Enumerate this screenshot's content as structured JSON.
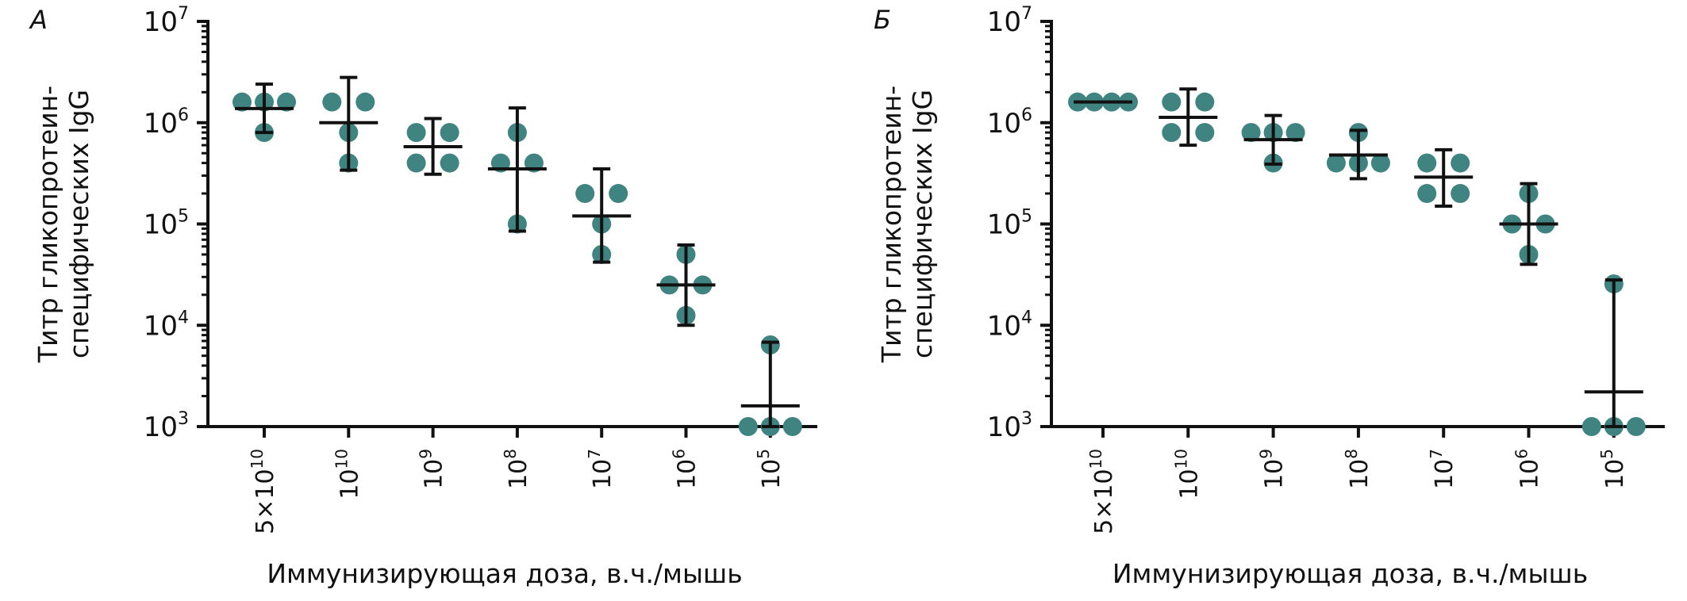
{
  "colors": {
    "point": "#3f8480",
    "axis": "#111111"
  },
  "chart_data": [
    {
      "type": "scatter",
      "panel_label": "А",
      "title": "",
      "xlabel": "Иммунизирующая доза, в.ч./мышь",
      "ylabel": "Титр гликопротеин-специфических IgG",
      "ylabel_lines": [
        "Титр гликопротеин-",
        "специфических IgG"
      ],
      "y_scale": "log",
      "ylim": [
        1000,
        10000000
      ],
      "y_ticks": [
        {
          "value": 1000,
          "base": "10",
          "exp": "3"
        },
        {
          "value": 10000,
          "base": "10",
          "exp": "4"
        },
        {
          "value": 100000,
          "base": "10",
          "exp": "5"
        },
        {
          "value": 1000000,
          "base": "10",
          "exp": "6"
        },
        {
          "value": 10000000,
          "base": "10",
          "exp": "7"
        }
      ],
      "categories": [
        {
          "prefix": "5×",
          "base": "10",
          "exp": "10"
        },
        {
          "prefix": "",
          "base": "10",
          "exp": "10"
        },
        {
          "prefix": "",
          "base": "10",
          "exp": "9"
        },
        {
          "prefix": "",
          "base": "10",
          "exp": "8"
        },
        {
          "prefix": "",
          "base": "10",
          "exp": "7"
        },
        {
          "prefix": "",
          "base": "10",
          "exp": "6"
        },
        {
          "prefix": "",
          "base": "10",
          "exp": "5"
        }
      ],
      "groups": [
        {
          "points": [
            1600000,
            1600000,
            1600000,
            800000
          ],
          "mean": 1380000,
          "err_low": 800000,
          "err_high": 2400000
        },
        {
          "points": [
            1600000,
            1600000,
            800000,
            400000
          ],
          "mean": 1000000,
          "err_low": 340000,
          "err_high": 2800000
        },
        {
          "points": [
            800000,
            800000,
            400000,
            400000
          ],
          "mean": 580000,
          "err_low": 310000,
          "err_high": 1100000
        },
        {
          "points": [
            800000,
            400000,
            400000,
            100000
          ],
          "mean": 350000,
          "err_low": 85000,
          "err_high": 1400000
        },
        {
          "points": [
            200000,
            200000,
            100000,
            50000
          ],
          "mean": 120000,
          "err_low": 42000,
          "err_high": 350000
        },
        {
          "points": [
            50000,
            25000,
            25000,
            12500
          ],
          "mean": 25000,
          "err_low": 10000,
          "err_high": 62000
        },
        {
          "points": [
            6400,
            1000,
            1000,
            1000
          ],
          "mean": 1600,
          "err_low": 1000,
          "err_high": 6800
        }
      ]
    },
    {
      "type": "scatter",
      "panel_label": "Б",
      "title": "",
      "xlabel": "Иммунизирующая доза, в.ч./мышь",
      "ylabel": "Титр гликопротеин-специфических IgG",
      "ylabel_lines": [
        "Титр гликопротеин-",
        "специфических IgG"
      ],
      "y_scale": "log",
      "ylim": [
        1000,
        10000000
      ],
      "y_ticks": [
        {
          "value": 1000,
          "base": "10",
          "exp": "3"
        },
        {
          "value": 10000,
          "base": "10",
          "exp": "4"
        },
        {
          "value": 100000,
          "base": "10",
          "exp": "5"
        },
        {
          "value": 1000000,
          "base": "10",
          "exp": "6"
        },
        {
          "value": 10000000,
          "base": "10",
          "exp": "7"
        }
      ],
      "categories": [
        {
          "prefix": "5×",
          "base": "10",
          "exp": "10"
        },
        {
          "prefix": "",
          "base": "10",
          "exp": "10"
        },
        {
          "prefix": "",
          "base": "10",
          "exp": "9"
        },
        {
          "prefix": "",
          "base": "10",
          "exp": "8"
        },
        {
          "prefix": "",
          "base": "10",
          "exp": "7"
        },
        {
          "prefix": "",
          "base": "10",
          "exp": "6"
        },
        {
          "prefix": "",
          "base": "10",
          "exp": "5"
        }
      ],
      "groups": [
        {
          "points": [
            1600000,
            1600000,
            1600000,
            1600000
          ],
          "mean": 1600000,
          "err_low": 1600000,
          "err_high": 1600000
        },
        {
          "points": [
            1600000,
            1600000,
            800000,
            800000
          ],
          "mean": 1130000,
          "err_low": 600000,
          "err_high": 2150000
        },
        {
          "points": [
            800000,
            800000,
            800000,
            400000
          ],
          "mean": 680000,
          "err_low": 390000,
          "err_high": 1180000
        },
        {
          "points": [
            800000,
            400000,
            400000,
            400000
          ],
          "mean": 480000,
          "err_low": 280000,
          "err_high": 840000
        },
        {
          "points": [
            400000,
            400000,
            200000,
            200000
          ],
          "mean": 290000,
          "err_low": 150000,
          "err_high": 540000
        },
        {
          "points": [
            200000,
            100000,
            100000,
            50000
          ],
          "mean": 100000,
          "err_low": 40000,
          "err_high": 250000
        },
        {
          "points": [
            25600,
            1000,
            1000,
            1000
          ],
          "mean": 2200,
          "err_low": 1000,
          "err_high": 28000
        }
      ]
    }
  ]
}
